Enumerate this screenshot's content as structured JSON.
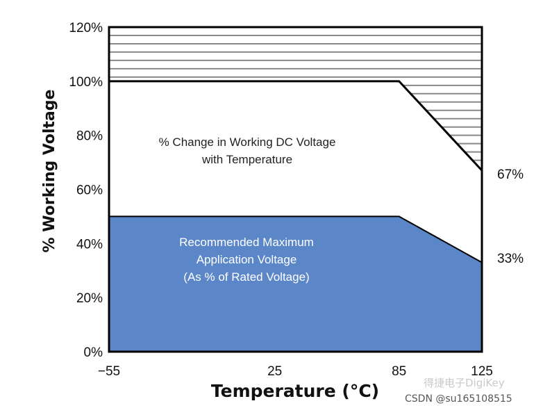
{
  "chart_data": {
    "type": "area",
    "xlabel": "Temperature (°C)",
    "ylabel": "% Working Voltage",
    "xlim": [
      -55,
      125
    ],
    "ylim": [
      0,
      120
    ],
    "x_ticks": [
      "−55",
      "25",
      "85",
      "125"
    ],
    "x_tick_values": [
      -55,
      25,
      85,
      125
    ],
    "y_ticks": [
      "0%",
      "20%",
      "40%",
      "60%",
      "80%",
      "100%",
      "120%"
    ],
    "y_tick_values": [
      0,
      20,
      40,
      60,
      80,
      100,
      120
    ],
    "grid": false,
    "series": [
      {
        "name": "% Change in Working DC Voltage with Temperature",
        "x": [
          -55,
          85,
          125
        ],
        "y": [
          100,
          100,
          67
        ],
        "fill": "#ffffff",
        "hatched_above": true
      },
      {
        "name": "Recommended Maximum Application Voltage (As % of Rated Voltage)",
        "x": [
          -55,
          85,
          125
        ],
        "y": [
          50,
          50,
          33
        ],
        "fill": "#5b86c8"
      }
    ],
    "annotations": {
      "working_voltage": [
        "% Change in Working DC Voltage",
        "with Temperature"
      ],
      "recommended": [
        "Recommended Maximum",
        "Application Voltage",
        "(As % of Rated Voltage)"
      ],
      "end_upper": "67%",
      "end_lower": "33%"
    },
    "colors": {
      "blue_fill": "#5b86c8",
      "hatch_line": "#888888",
      "outline": "#000000"
    }
  },
  "watermark": {
    "brand": "得捷电子DigiKey",
    "source": "CSDN @su165108515"
  }
}
